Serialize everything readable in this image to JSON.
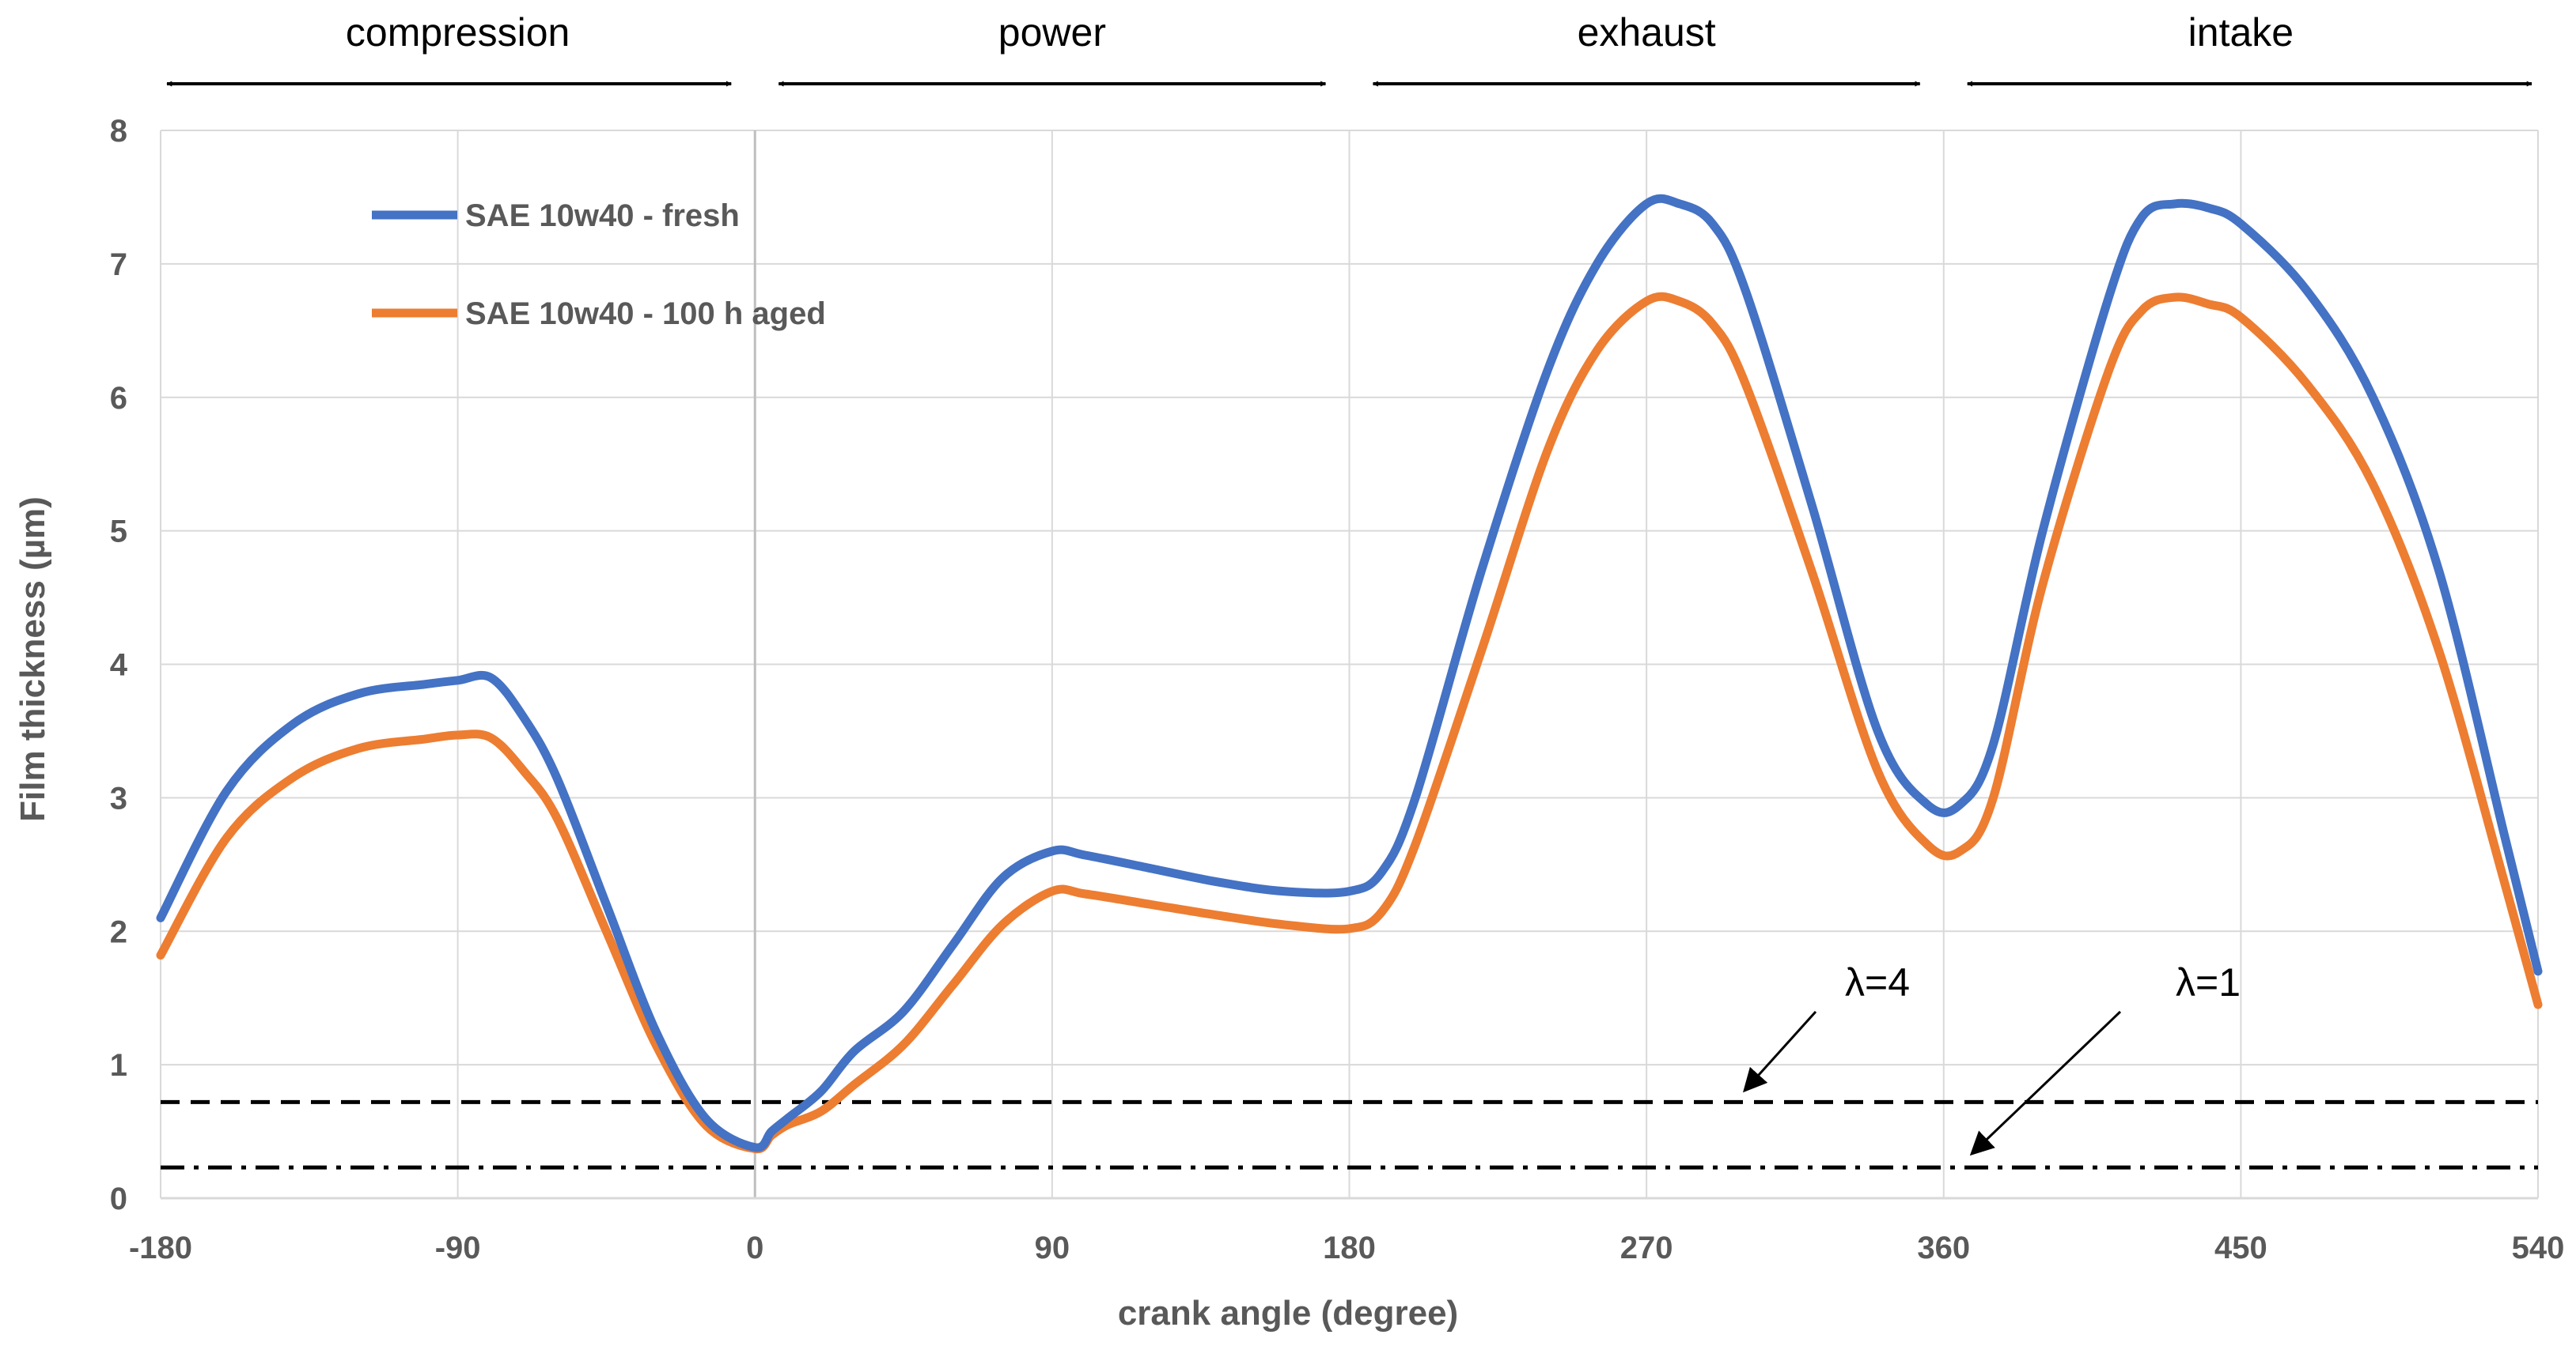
{
  "chart_data": {
    "type": "line",
    "title": "",
    "xlabel": "crank angle (degree)",
    "ylabel": "Film thickness (µm)",
    "xlim": [
      -180,
      540
    ],
    "ylim": [
      0,
      8
    ],
    "xticks": [
      -180,
      -90,
      0,
      90,
      180,
      270,
      360,
      450,
      540
    ],
    "yticks": [
      0,
      1,
      2,
      3,
      4,
      5,
      6,
      7,
      8
    ],
    "grid": true,
    "legend_position": "top-left",
    "series": [
      {
        "name": "SAE 10w40 - fresh",
        "color": "#4472C4",
        "x": [
          -180,
          -160,
          -140,
          -120,
          -100,
          -90,
          -80,
          -70,
          -60,
          -45,
          -30,
          -15,
          0,
          5,
          10,
          20,
          30,
          45,
          60,
          75,
          90,
          100,
          120,
          140,
          160,
          180,
          190,
          200,
          220,
          240,
          255,
          270,
          280,
          290,
          300,
          320,
          340,
          355,
          365,
          375,
          390,
          410,
          420,
          430,
          440,
          450,
          470,
          490,
          510,
          530,
          540
        ],
        "y": [
          2.1,
          3.05,
          3.55,
          3.78,
          3.85,
          3.88,
          3.9,
          3.6,
          3.15,
          2.2,
          1.25,
          0.6,
          0.38,
          0.5,
          0.6,
          0.8,
          1.1,
          1.4,
          1.9,
          2.4,
          2.6,
          2.57,
          2.47,
          2.37,
          2.3,
          2.3,
          2.45,
          3.0,
          4.7,
          6.2,
          7.0,
          7.45,
          7.45,
          7.3,
          6.8,
          5.2,
          3.5,
          2.95,
          2.95,
          3.4,
          5.0,
          6.75,
          7.35,
          7.45,
          7.42,
          7.3,
          6.8,
          6.0,
          4.7,
          2.7,
          1.7
        ]
      },
      {
        "name": "SAE 10w40 - 100 h aged",
        "color": "#ED7D31",
        "x": [
          -180,
          -160,
          -140,
          -120,
          -100,
          -90,
          -80,
          -70,
          -60,
          -45,
          -30,
          -15,
          0,
          5,
          10,
          20,
          30,
          45,
          60,
          75,
          90,
          100,
          120,
          140,
          160,
          180,
          190,
          200,
          220,
          240,
          255,
          270,
          280,
          290,
          300,
          320,
          340,
          355,
          365,
          375,
          390,
          410,
          420,
          430,
          440,
          450,
          470,
          490,
          510,
          530,
          540
        ],
        "y": [
          1.82,
          2.7,
          3.15,
          3.37,
          3.44,
          3.47,
          3.45,
          3.2,
          2.85,
          2.0,
          1.15,
          0.55,
          0.37,
          0.47,
          0.55,
          0.65,
          0.85,
          1.15,
          1.6,
          2.05,
          2.3,
          2.28,
          2.2,
          2.12,
          2.05,
          2.02,
          2.15,
          2.65,
          4.1,
          5.6,
          6.35,
          6.72,
          6.72,
          6.55,
          6.1,
          4.7,
          3.2,
          2.65,
          2.6,
          3.0,
          4.6,
          6.2,
          6.65,
          6.75,
          6.7,
          6.6,
          6.1,
          5.35,
          4.1,
          2.35,
          1.45
        ]
      }
    ],
    "reference_lines": [
      {
        "label": "λ=4",
        "y": 0.72,
        "style": "dashed"
      },
      {
        "label": "λ=1",
        "y": 0.23,
        "style": "dash-dot"
      }
    ],
    "phases": [
      {
        "label": "compression",
        "from": -180,
        "to": 0
      },
      {
        "label": "power",
        "from": 0,
        "to": 180
      },
      {
        "label": "exhaust",
        "from": 180,
        "to": 360
      },
      {
        "label": "intake",
        "from": 360,
        "to": 540
      }
    ]
  }
}
